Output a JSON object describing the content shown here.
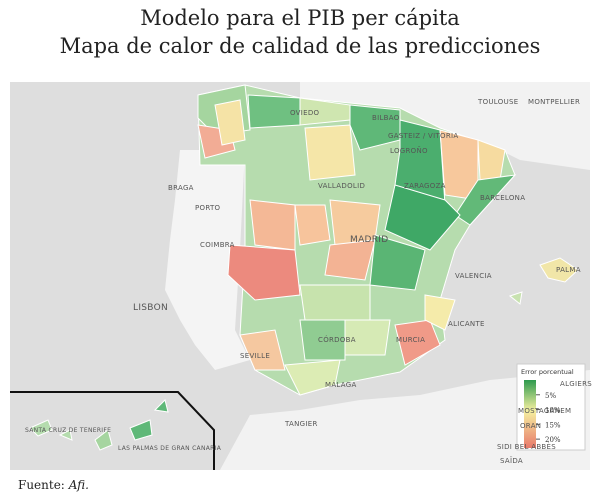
{
  "title": [
    "Modelo para el PIB per cápita",
    "Mapa de calor de calidad de las predicciones"
  ],
  "map": {
    "labels": [
      "TOULOUSE",
      "MONTPELLIER",
      "OVIEDO",
      "BILBAO",
      "GASTEIZ / VITORIA",
      "LOGROÑO",
      "BRAGA",
      "PORTO",
      "VALLADOLID",
      "ZARAGOZA",
      "BARCELONA",
      "COIMBRA",
      "MADRID",
      "VALENCIA",
      "PALMA",
      "LISBON",
      "ALICANTE",
      "SEVILLE",
      "CÓRDOBA",
      "MURCIA",
      "MÁLAGA",
      "ALGIERS",
      "TANGIER",
      "MOSTAGANEM",
      "ORAN",
      "SIDI BEL ABBÈS",
      "SAÏDA",
      "SANTA CRUZ DE TENERIFE",
      "LAS PALMAS DE GRAN CANARIA"
    ]
  },
  "legend": {
    "title": "Error porcentual",
    "lim": [
      0,
      23
    ],
    "ticks": [
      {
        "value": 5,
        "label": "5%"
      },
      {
        "value": 10,
        "label": "10%"
      },
      {
        "value": 15,
        "label": "15%"
      },
      {
        "value": 20,
        "label": "20%"
      }
    ]
  },
  "source": {
    "prefix": "Fuente:",
    "name": "Afi."
  }
}
